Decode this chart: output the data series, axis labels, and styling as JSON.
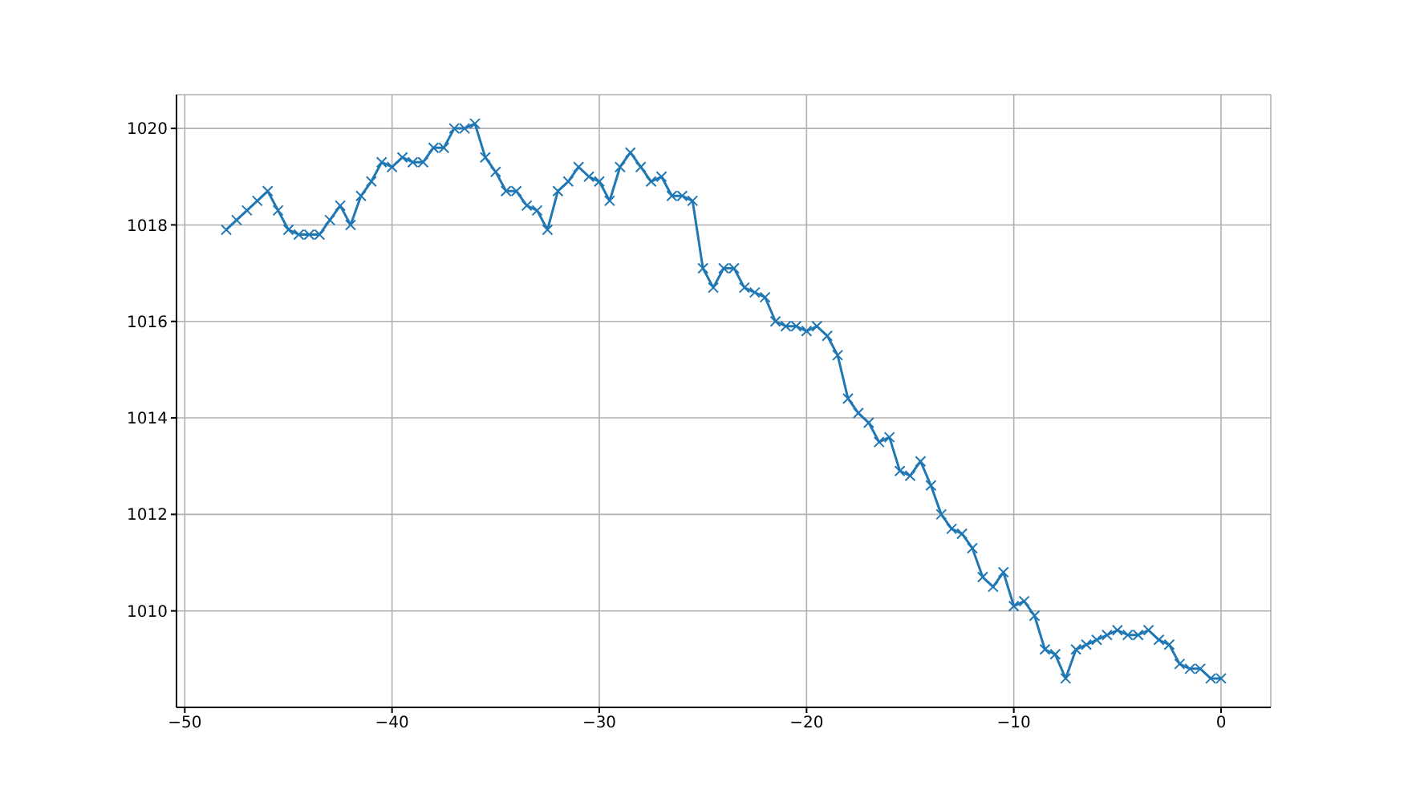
{
  "chart_data": {
    "type": "line",
    "x": [
      -48,
      -47.5,
      -47,
      -46.5,
      -46,
      -45.5,
      -45,
      -44.5,
      -44,
      -43.5,
      -43,
      -42.5,
      -42,
      -41.5,
      -41,
      -40.5,
      -40,
      -39.5,
      -39,
      -38.5,
      -38,
      -37.5,
      -37,
      -36.5,
      -36,
      -35.5,
      -35,
      -34.5,
      -34,
      -33.5,
      -33,
      -32.5,
      -32,
      -31.5,
      -31,
      -30.5,
      -30,
      -29.5,
      -29,
      -28.5,
      -28,
      -27.5,
      -27,
      -26.5,
      -26,
      -25.5,
      -25,
      -24.5,
      -24,
      -23.5,
      -23,
      -22.5,
      -22,
      -21.5,
      -21,
      -20.5,
      -20,
      -19.5,
      -19,
      -18.5,
      -18,
      -17.5,
      -17,
      -16.5,
      -16,
      -15.5,
      -15,
      -14.5,
      -14,
      -13.5,
      -13,
      -12.5,
      -12,
      -11.5,
      -11,
      -10.5,
      -10,
      -9.5,
      -9,
      -8.5,
      -8,
      -7.5,
      -7,
      -6.5,
      -6,
      -5.5,
      -5,
      -4.5,
      -4,
      -3.5,
      -3,
      -2.5,
      -2,
      -1.5,
      -1,
      -0.5,
      0
    ],
    "series": [
      {
        "color": "#1f77b4",
        "values": [
          1017.9,
          1018.1,
          1018.3,
          1018.5,
          1018.7,
          1018.3,
          1017.9,
          1017.8,
          1017.8,
          1017.8,
          1018.1,
          1018.4,
          1018.0,
          1018.6,
          1018.9,
          1019.3,
          1019.2,
          1019.4,
          1019.3,
          1019.3,
          1019.6,
          1019.6,
          1020.0,
          1020.0,
          1020.1,
          1019.4,
          1019.1,
          1018.7,
          1018.7,
          1018.4,
          1018.3,
          1017.9,
          1018.7,
          1018.9,
          1019.2,
          1019.0,
          1018.9,
          1018.5,
          1019.2,
          1019.5,
          1019.2,
          1018.9,
          1019.0,
          1018.6,
          1018.6,
          1018.5,
          1017.1,
          1016.7,
          1017.1,
          1017.1,
          1016.7,
          1016.6,
          1016.5,
          1016.0,
          1015.9,
          1015.9,
          1015.8,
          1015.9,
          1015.7,
          1015.3,
          1014.4,
          1014.1,
          1013.9,
          1013.5,
          1013.6,
          1012.9,
          1012.8,
          1013.1,
          1012.6,
          1012.0,
          1011.7,
          1011.6,
          1011.3,
          1010.7,
          1010.5,
          1010.8,
          1010.1,
          1010.2,
          1009.9,
          1009.2,
          1009.1,
          1008.6,
          1009.2,
          1009.3,
          1009.4,
          1009.5,
          1009.6,
          1009.5,
          1009.5,
          1009.6,
          1009.4,
          1009.3,
          1008.9,
          1008.8,
          1008.8,
          1008.6,
          1008.6
        ]
      }
    ],
    "xlim": [
      -50.4,
      2.4
    ],
    "xticks": [
      -50,
      -40,
      -30,
      -20,
      -10,
      0
    ],
    "ylim": [
      1008,
      1020.7
    ],
    "yticks": [
      1010,
      1012,
      1014,
      1016,
      1018,
      1020
    ],
    "grid": true,
    "marker": "cross",
    "line_style": "solid"
  }
}
